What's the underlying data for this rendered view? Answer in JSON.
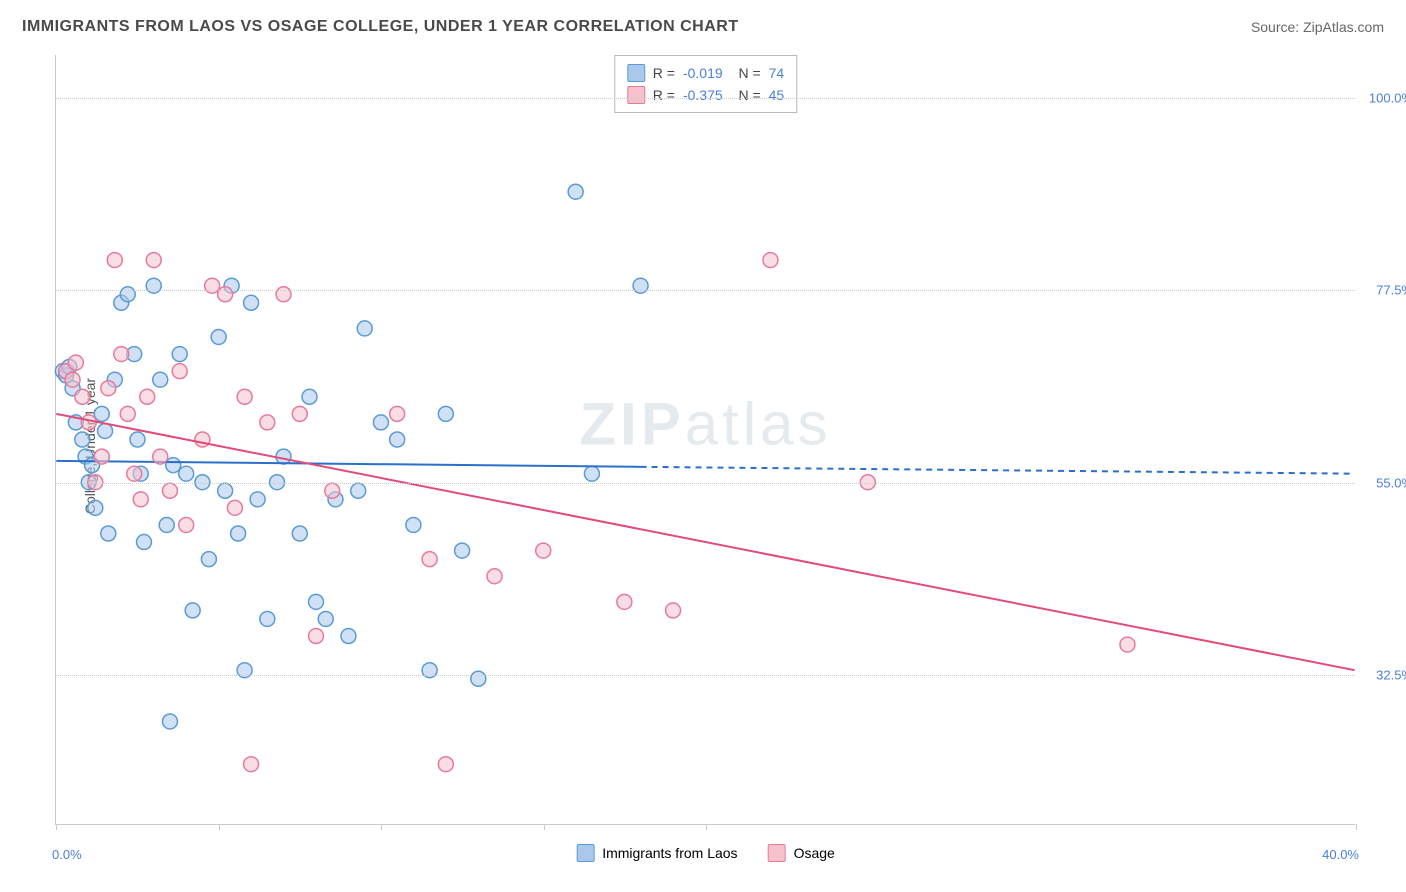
{
  "title": "IMMIGRANTS FROM LAOS VS OSAGE COLLEGE, UNDER 1 YEAR CORRELATION CHART",
  "source": "Source: ZipAtlas.com",
  "y_label": "College, Under 1 year",
  "watermark_a": "ZIP",
  "watermark_b": "atlas",
  "chart": {
    "type": "scatter",
    "background_color": "#ffffff",
    "grid_color": "#cccccc",
    "axis_color": "#c9c9c9",
    "xlim": [
      0,
      40
    ],
    "ylim": [
      15,
      105
    ],
    "x_ticks": [
      0,
      5,
      10,
      15,
      20,
      40
    ],
    "x_tick_labels": {
      "0": "0.0%",
      "40": "40.0%"
    },
    "y_gridlines": [
      32.5,
      55.0,
      77.5,
      100.0
    ],
    "y_tick_labels": [
      "32.5%",
      "55.0%",
      "77.5%",
      "100.0%"
    ],
    "marker_radius": 7.5,
    "marker_fill_opacity": 0.55,
    "marker_stroke_width": 1.5,
    "series": [
      {
        "name": "Immigrants from Laos",
        "color_fill": "#a9c8ec",
        "color_stroke": "#5a9ad6",
        "trend": {
          "x1": 0,
          "y1": 57.5,
          "x2": 18,
          "y2": 56.8,
          "dash_x2": 40,
          "dash_y2": 56.0,
          "color": "#2a6fc9",
          "width": 2
        },
        "R": "-0.019",
        "N": "74",
        "points": [
          [
            0.2,
            68
          ],
          [
            0.3,
            67.5
          ],
          [
            0.4,
            68.5
          ],
          [
            0.5,
            66
          ],
          [
            0.6,
            62
          ],
          [
            0.8,
            60
          ],
          [
            0.9,
            58
          ],
          [
            1.0,
            55
          ],
          [
            1.1,
            57
          ],
          [
            1.2,
            52
          ],
          [
            1.4,
            63
          ],
          [
            1.5,
            61
          ],
          [
            1.6,
            49
          ],
          [
            1.8,
            67
          ],
          [
            2.0,
            76
          ],
          [
            2.2,
            77
          ],
          [
            2.4,
            70
          ],
          [
            2.5,
            60
          ],
          [
            2.6,
            56
          ],
          [
            2.7,
            48
          ],
          [
            3.0,
            78
          ],
          [
            3.2,
            67
          ],
          [
            3.4,
            50
          ],
          [
            3.5,
            27
          ],
          [
            3.6,
            57
          ],
          [
            3.8,
            70
          ],
          [
            4.0,
            56
          ],
          [
            4.2,
            40
          ],
          [
            4.5,
            55
          ],
          [
            4.7,
            46
          ],
          [
            5.0,
            72
          ],
          [
            5.2,
            54
          ],
          [
            5.4,
            78
          ],
          [
            5.6,
            49
          ],
          [
            5.8,
            33
          ],
          [
            6.0,
            76
          ],
          [
            6.2,
            53
          ],
          [
            6.5,
            39
          ],
          [
            6.8,
            55
          ],
          [
            7.0,
            58
          ],
          [
            7.5,
            49
          ],
          [
            7.8,
            65
          ],
          [
            8.0,
            41
          ],
          [
            8.3,
            39
          ],
          [
            8.6,
            53
          ],
          [
            9.0,
            37
          ],
          [
            9.3,
            54
          ],
          [
            9.5,
            73
          ],
          [
            10.0,
            62
          ],
          [
            10.5,
            60
          ],
          [
            11.0,
            50
          ],
          [
            11.5,
            33
          ],
          [
            12.0,
            63
          ],
          [
            12.5,
            47
          ],
          [
            13.0,
            32
          ],
          [
            16.0,
            89
          ],
          [
            16.5,
            56
          ],
          [
            18.0,
            78
          ]
        ]
      },
      {
        "name": "Osage",
        "color_fill": "#f4c1cd",
        "color_stroke": "#e77a9a",
        "trend": {
          "x1": 0,
          "y1": 63,
          "x2": 40,
          "y2": 33,
          "color": "#e24a77",
          "width": 2
        },
        "R": "-0.375",
        "N": "45",
        "points": [
          [
            0.3,
            68
          ],
          [
            0.5,
            67
          ],
          [
            0.6,
            69
          ],
          [
            0.8,
            65
          ],
          [
            1.0,
            62
          ],
          [
            1.2,
            55
          ],
          [
            1.4,
            58
          ],
          [
            1.6,
            66
          ],
          [
            1.8,
            81
          ],
          [
            2.0,
            70
          ],
          [
            2.2,
            63
          ],
          [
            2.4,
            56
          ],
          [
            2.6,
            53
          ],
          [
            2.8,
            65
          ],
          [
            3.0,
            81
          ],
          [
            3.2,
            58
          ],
          [
            3.5,
            54
          ],
          [
            3.8,
            68
          ],
          [
            4.0,
            50
          ],
          [
            4.5,
            60
          ],
          [
            4.8,
            78
          ],
          [
            5.2,
            77
          ],
          [
            5.5,
            52
          ],
          [
            5.8,
            65
          ],
          [
            6.0,
            22
          ],
          [
            6.5,
            62
          ],
          [
            7.0,
            77
          ],
          [
            7.5,
            63
          ],
          [
            8.0,
            37
          ],
          [
            8.5,
            54
          ],
          [
            10.5,
            63
          ],
          [
            11.5,
            46
          ],
          [
            12.0,
            22
          ],
          [
            13.5,
            44
          ],
          [
            15.0,
            47
          ],
          [
            17.5,
            41
          ],
          [
            19.0,
            40
          ],
          [
            22.0,
            81
          ],
          [
            25.0,
            55
          ],
          [
            33.0,
            36
          ]
        ]
      }
    ]
  },
  "legend_bottom": [
    {
      "label": "Immigrants from Laos",
      "fill": "#a9c8ec",
      "stroke": "#5a9ad6"
    },
    {
      "label": "Osage",
      "fill": "#f4c1cd",
      "stroke": "#e77a9a"
    }
  ]
}
